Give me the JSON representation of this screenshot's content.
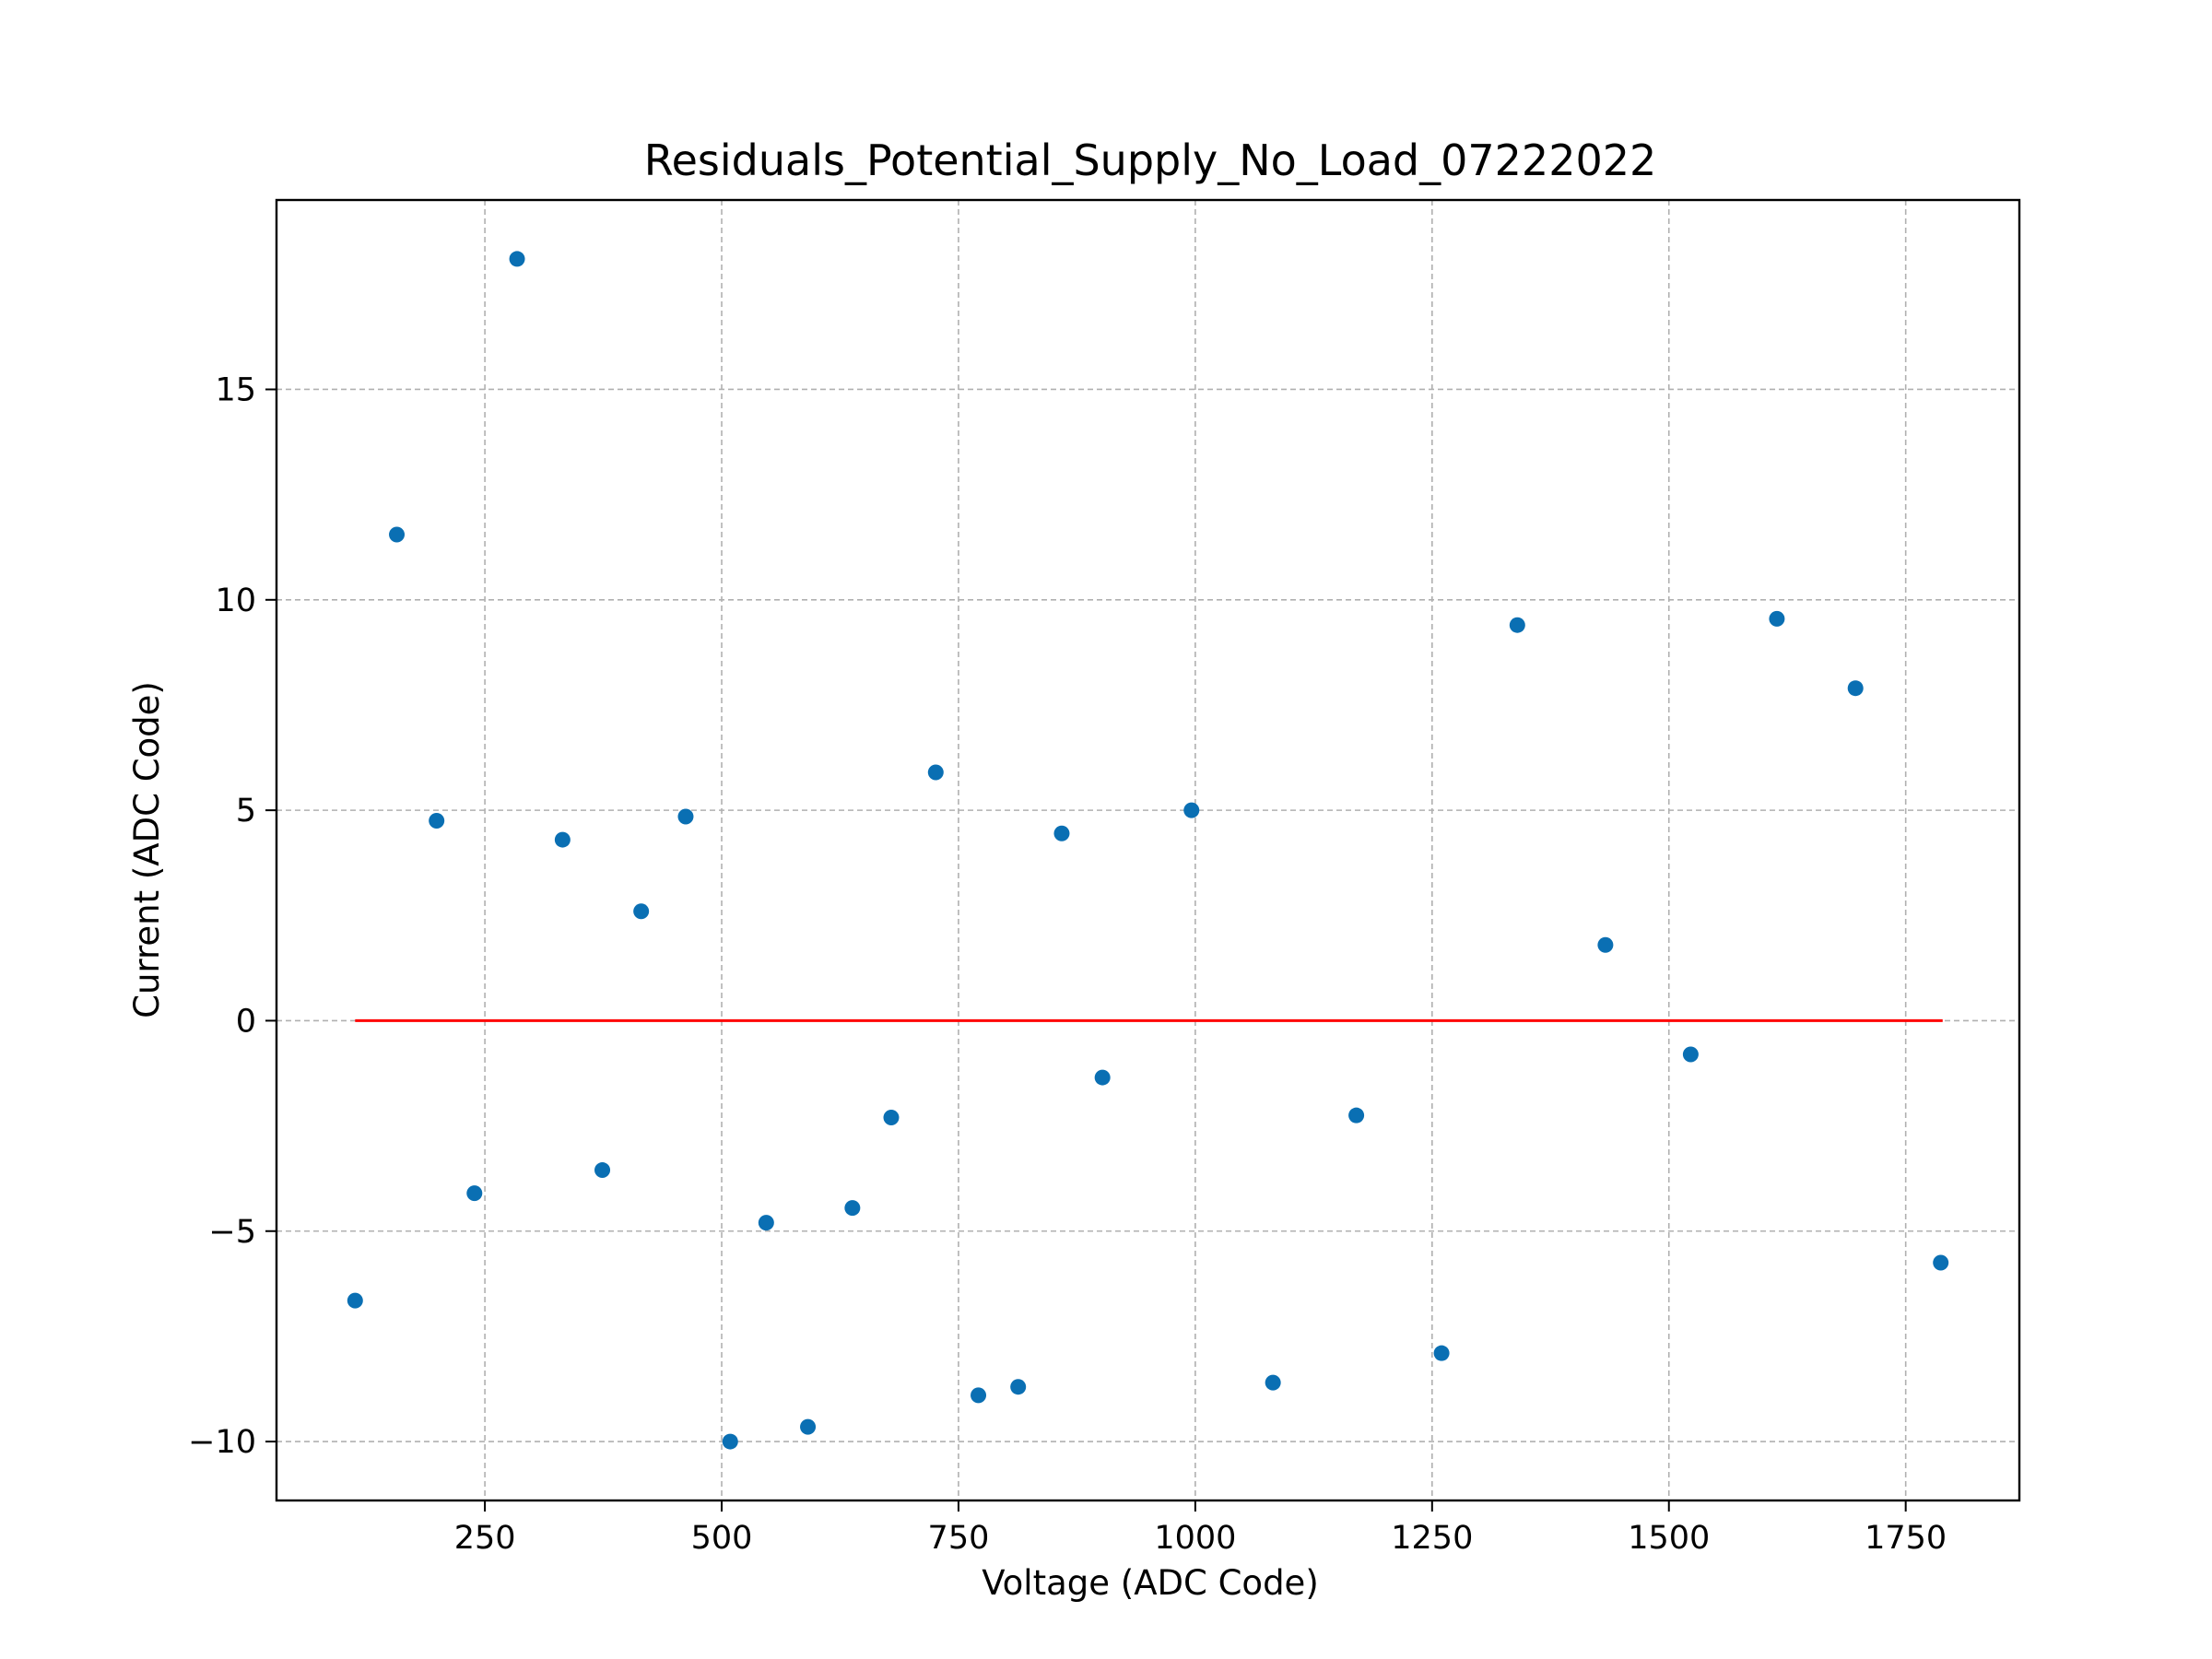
{
  "chart_data": {
    "type": "scatter",
    "title": "Residuals_Potential_Supply_No_Load_07222022",
    "xlabel": "Voltage (ADC Code)",
    "ylabel": "Current (ADC Code)",
    "xlim": [
      30,
      1870
    ],
    "ylim": [
      -11.4,
      19.5
    ],
    "xticks": [
      250,
      500,
      750,
      1000,
      1250,
      1500,
      1750
    ],
    "yticks": [
      -10,
      -5,
      0,
      5,
      10,
      15
    ],
    "grid": true,
    "colors": {
      "points": "#0a6fb3",
      "reference_line": "#ff0000"
    },
    "reference_line": {
      "x": [
        113,
        1789
      ],
      "y": [
        0,
        0
      ]
    },
    "series": [
      {
        "x": [
          113,
          157,
          199,
          239,
          284,
          332,
          374,
          415,
          462,
          509,
          547,
          591,
          638,
          679,
          726,
          771,
          813,
          859,
          902,
          996,
          1082,
          1170,
          1260,
          1340,
          1433,
          1523,
          1614,
          1697,
          1787
        ],
        "y": [
          -6.65,
          11.55,
          4.75,
          -4.1,
          18.1,
          4.3,
          -3.55,
          2.6,
          4.85,
          -10.0,
          -4.8,
          -9.65,
          -4.45,
          -2.3,
          5.9,
          -8.9,
          -8.7,
          4.45,
          -1.35,
          5.0,
          -8.6,
          -2.25,
          -7.9,
          9.4,
          1.8,
          -0.8,
          9.55,
          7.9,
          -5.75
        ]
      }
    ]
  }
}
